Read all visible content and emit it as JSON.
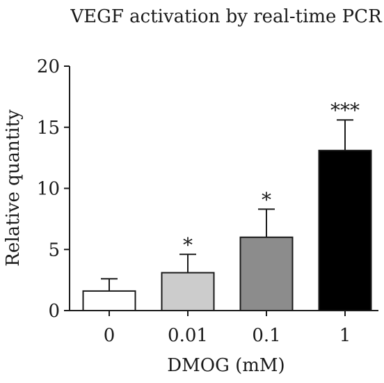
{
  "chart_data": {
    "type": "bar",
    "title": "VEGF activation by real-time PCR",
    "xlabel": "DMOG (mM)",
    "ylabel": "Relative quantity",
    "categories": [
      "0",
      "0.01",
      "0.1",
      "1"
    ],
    "values": [
      1.6,
      3.1,
      6.0,
      13.1
    ],
    "errors": [
      1.0,
      1.5,
      2.3,
      2.5
    ],
    "significance": [
      "",
      "*",
      "*",
      "***"
    ],
    "ylim": [
      0,
      20
    ],
    "yticks": [
      "0",
      "5",
      "10",
      "15",
      "20"
    ],
    "grid": false,
    "legend": "none",
    "bar_colors": [
      "#ffffff",
      "#cccccc",
      "#8c8c8c",
      "#000000"
    ],
    "error_bar_style": "upper-only"
  }
}
